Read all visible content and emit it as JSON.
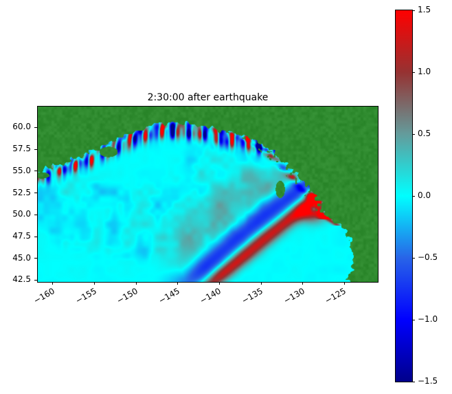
{
  "figure": {
    "background_color": "#ffffff"
  },
  "chart_data": {
    "type": "heatmap",
    "title": "2:30:00 after earthquake",
    "xlabel": "",
    "ylabel": "",
    "grid": false,
    "x_axis": {
      "ticks": [
        -160,
        -155,
        -150,
        -145,
        -140,
        -135,
        -130,
        -125
      ],
      "range": [
        -161.8,
        -121.0
      ],
      "tick_rotation_deg": 30
    },
    "y_axis": {
      "ticks": [
        60.0,
        57.5,
        55.0,
        52.5,
        50.0,
        47.5,
        45.0,
        42.5
      ],
      "range": [
        42.3,
        62.4
      ]
    },
    "colorbar": {
      "min": -1.5,
      "max": 1.5,
      "ticks": [
        1.5,
        1.0,
        0.5,
        0.0,
        -0.5,
        -1.0,
        -1.5
      ],
      "stops": [
        {
          "value": -1.5,
          "color": "#00008b"
        },
        {
          "value": -1.0,
          "color": "#0000ff"
        },
        {
          "value": -0.5,
          "color": "#2864e8"
        },
        {
          "value": 0.0,
          "color": "#00ffff"
        },
        {
          "value": 0.5,
          "color": "#649b9b"
        },
        {
          "value": 1.0,
          "color": "#963232"
        },
        {
          "value": 1.5,
          "color": "#ff0000"
        }
      ]
    },
    "map": {
      "land_color": "#2f8b2f",
      "ocean_zero_color": "#00ffff",
      "source_center": {
        "lon": -150.0,
        "lat": 57.0
      },
      "leading_front_radius_deg": 14.3,
      "features": [
        {
          "name": "land",
          "appearance": "green",
          "regions": "Alaska along top, Alaska Peninsula and Kodiak Island upper left, southeast Alaska / British Columbia / Pacific Northwest coast on right"
        },
        {
          "name": "leading-wave-crest",
          "appearance": "red arc",
          "peak_value": 1.5,
          "path": "from near Vancouver Island (-128.5, 51) curving southwest to about (-141, 42.5)"
        },
        {
          "name": "trailing-trough",
          "appearance": "blue band inside the red arc near the BC coast",
          "value": -0.8
        },
        {
          "name": "coastal-oscillations",
          "appearance": "alternating red and blue patches along the Alaskan shelf and BC coast",
          "value_range": [
            -1.5,
            1.5
          ]
        },
        {
          "name": "undisturbed-ocean",
          "appearance": "uniform cyan",
          "value": 0.0
        }
      ]
    }
  }
}
